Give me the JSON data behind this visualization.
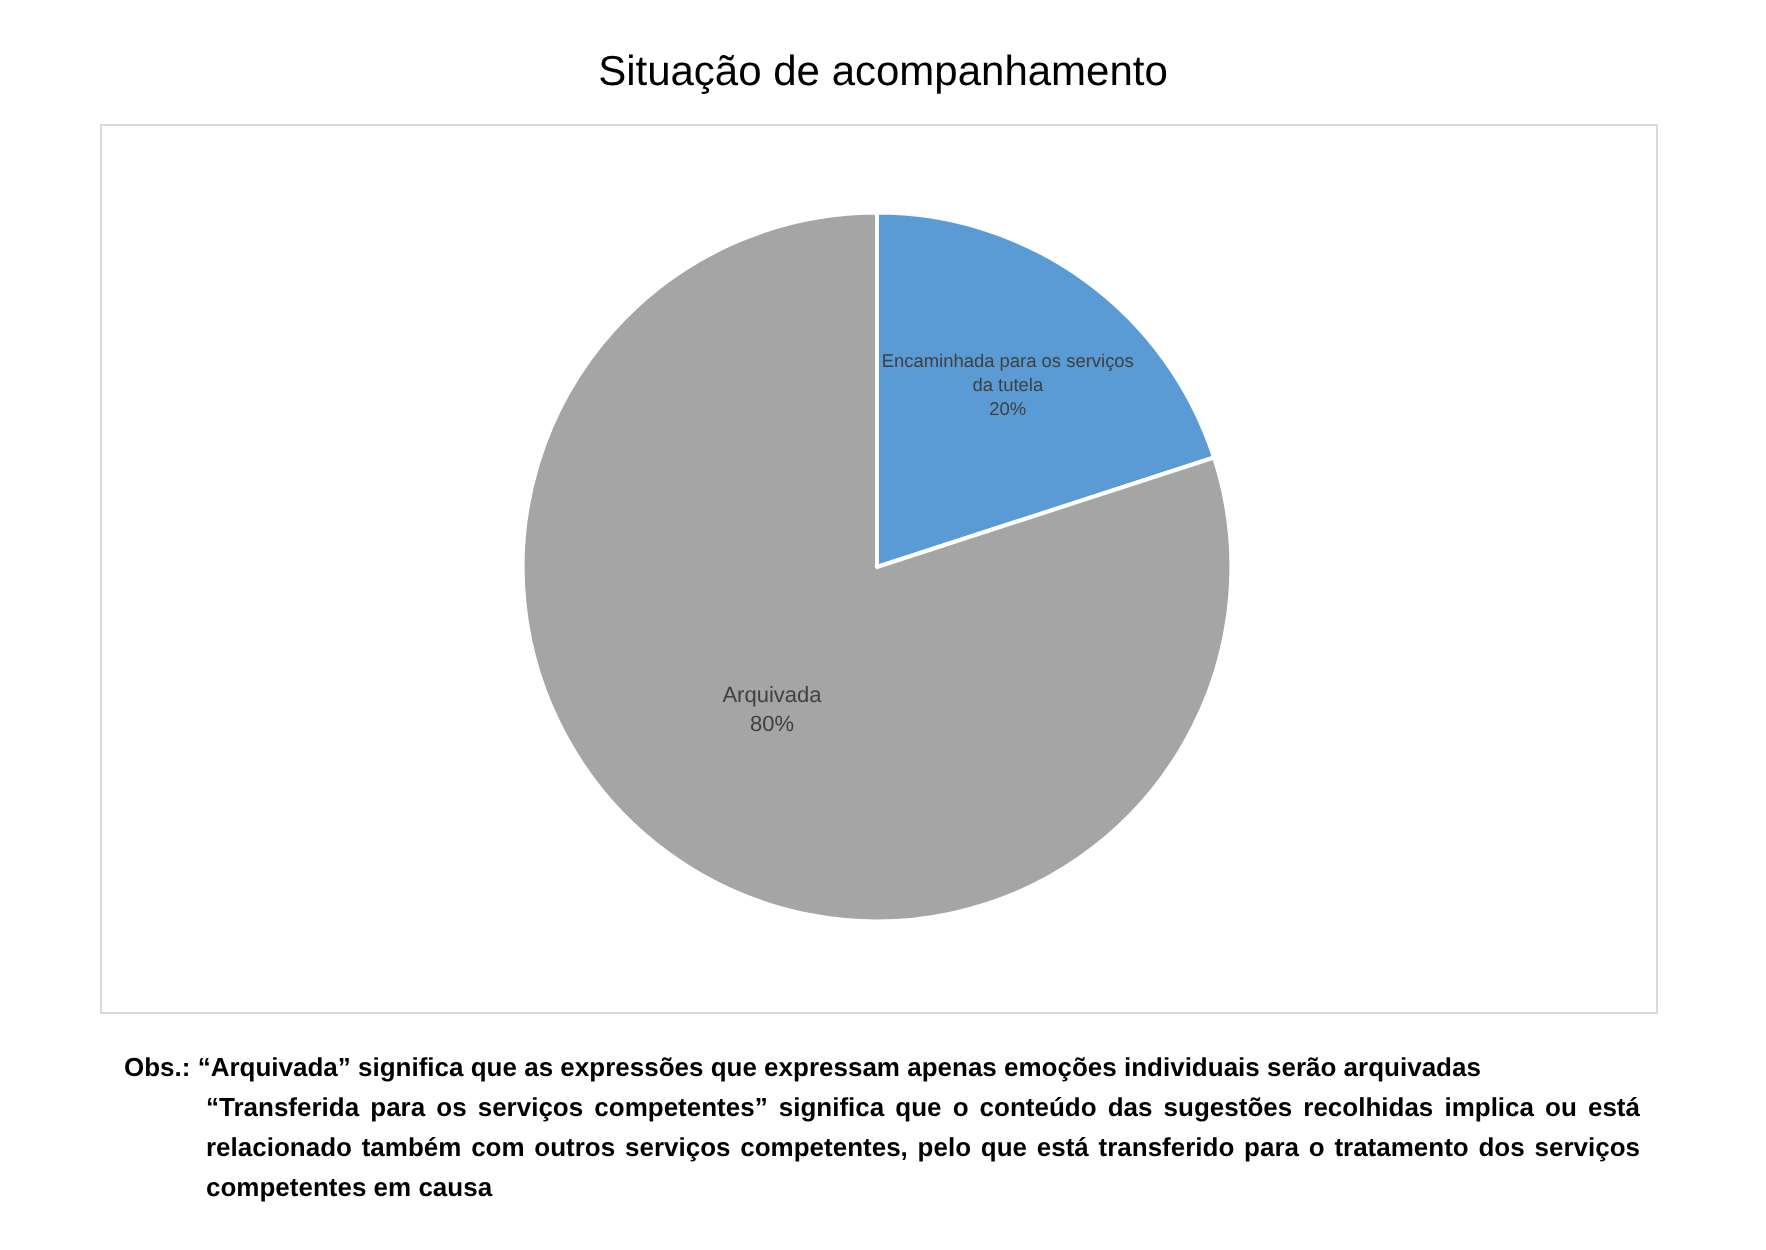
{
  "chart_data": {
    "type": "pie",
    "title": "Situação de acompanhamento",
    "categories": [
      "Encaminhada para os serviços da tutela",
      "Arquivada"
    ],
    "values": [
      20,
      80
    ],
    "value_labels": [
      "20%",
      "80%"
    ],
    "colors": [
      "#5b9bd5",
      "#a5a5a5"
    ],
    "legend": false,
    "annotations": [
      "Obs.: “Arquivada” significa que as expressões que expressam apenas emoções individuais serão arquivadas",
      "“Transferida para os serviços competentes” significa que o conteúdo das sugestões recolhidas implica ou está relacionado também com outros serviços competentes, pelo que está transferido para o tratamento dos serviços competentes em causa"
    ]
  }
}
